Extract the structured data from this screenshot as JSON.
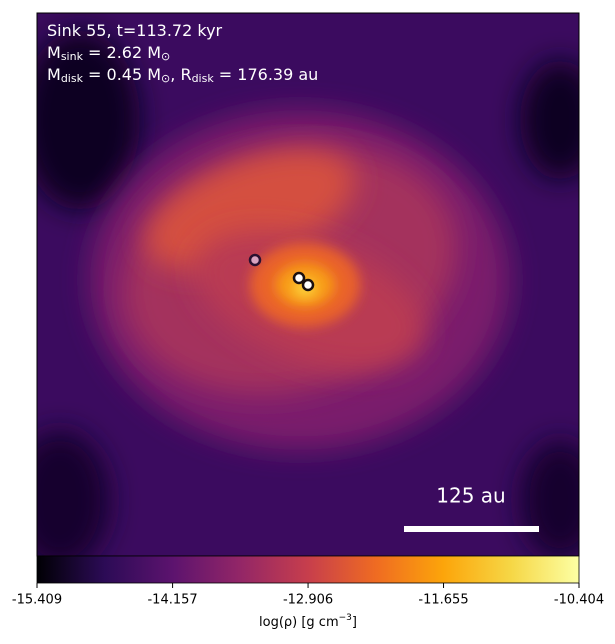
{
  "chart_data": {
    "type": "density-map",
    "annotations": [
      [
        "Sink 55, t=113.72 kyr"
      ],
      [
        "M",
        "sink",
        " = 2.62 M",
        "⊙"
      ],
      [
        "M",
        "disk",
        " = 0.45 M",
        "⊙",
        ", R",
        "disk",
        " = 176.39 au"
      ]
    ],
    "scale_bar_label": "125 au",
    "colorbar_label": [
      "log(ρ) [g cm",
      "−3",
      "]"
    ],
    "xlim": [
      -15.409,
      -10.404
    ],
    "xticks": [
      -15.409,
      -14.157,
      -12.906,
      -11.655,
      -10.404
    ],
    "colormap": [
      "#000004",
      "#2c0b56",
      "#5c136e",
      "#932667",
      "#c73e4c",
      "#ef6b22",
      "#fca50a",
      "#f6d746",
      "#fcffa4"
    ]
  }
}
